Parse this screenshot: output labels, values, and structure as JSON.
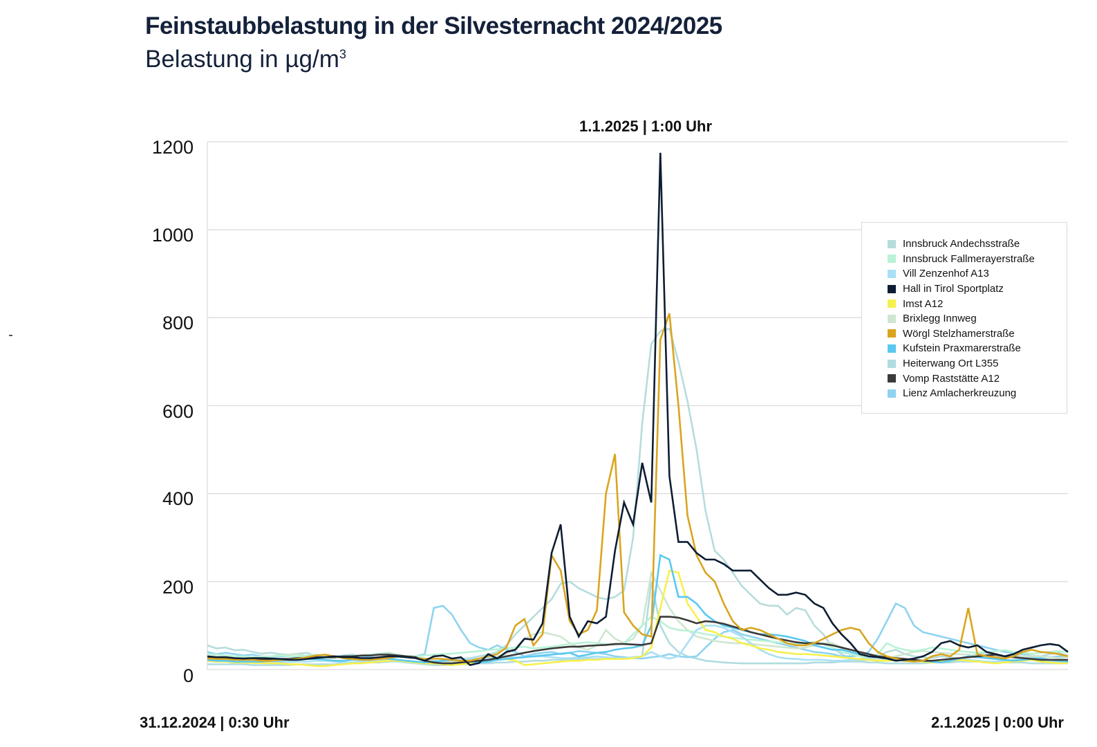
{
  "chart_data": {
    "type": "line",
    "title": "Feinstaubbelastung in der Silvesternacht 2024/2025",
    "subtitle": "Belastung in µg/m",
    "subtitle_sup": "3",
    "ylabel": "Belastung in µg/m³",
    "xlabel": "",
    "ylim": [
      0,
      1200
    ],
    "yticks": [
      "0",
      "200",
      "400",
      "600",
      "800",
      "1000",
      "1200"
    ],
    "grid": true,
    "legend_position": "right",
    "x_start_label": "31.12.2024 | 0:30 Uhr",
    "x_end_label": "2.1.2025 | 0:00 Uhr",
    "peak_annotation": "1.1.2025 | 1:00 Uhr",
    "x_interval": "30 min",
    "series": [
      {
        "name": "Innsbruck Andechsstraße",
        "color": "#b7dcdc",
        "values": [
          55,
          48,
          50,
          44,
          45,
          40,
          36,
          38,
          35,
          34,
          36,
          38,
          30,
          28,
          30,
          32,
          34,
          30,
          32,
          36,
          38,
          34,
          30,
          28,
          25,
          20,
          18,
          22,
          24,
          26,
          30,
          34,
          40,
          55,
          80,
          100,
          120,
          140,
          160,
          195,
          200,
          185,
          175,
          165,
          160,
          165,
          180,
          300,
          560,
          740,
          770,
          775,
          700,
          610,
          500,
          360,
          270,
          250,
          220,
          190,
          170,
          150,
          145,
          145,
          125,
          140,
          135,
          100,
          80,
          50,
          35,
          25,
          20,
          22,
          30,
          40,
          45,
          35,
          30,
          28,
          26,
          30,
          28,
          25,
          30,
          35,
          38,
          30,
          28,
          32,
          30,
          28,
          30,
          35,
          38,
          32
        ]
      },
      {
        "name": "Innsbruck Fallmerayerstraße",
        "color": "#b9f2d6",
        "values": [
          35,
          34,
          32,
          30,
          30,
          28,
          28,
          30,
          32,
          30,
          30,
          32,
          34,
          30,
          28,
          28,
          30,
          32,
          34,
          36,
          34,
          30,
          28,
          30,
          32,
          34,
          35,
          36,
          38,
          40,
          42,
          44,
          46,
          48,
          50,
          52,
          48,
          50,
          52,
          55,
          58,
          60,
          62,
          60,
          58,
          56,
          60,
          80,
          100,
          120,
          110,
          95,
          90,
          88,
          85,
          80,
          78,
          75,
          72,
          70,
          68,
          66,
          64,
          62,
          60,
          58,
          60,
          62,
          58,
          50,
          40,
          35,
          30,
          28,
          35,
          60,
          50,
          45,
          42,
          45,
          50,
          48,
          45,
          42,
          40,
          38,
          40,
          42,
          44,
          40,
          38,
          36,
          38,
          40,
          42,
          40
        ]
      },
      {
        "name": "Vill Zenzenhof A13",
        "color": "#a9e0f5",
        "values": [
          20,
          18,
          18,
          16,
          16,
          15,
          15,
          16,
          16,
          17,
          18,
          18,
          20,
          20,
          18,
          16,
          16,
          18,
          20,
          22,
          20,
          18,
          16,
          15,
          16,
          18,
          20,
          22,
          22,
          24,
          24,
          26,
          26,
          28,
          28,
          28,
          30,
          30,
          28,
          26,
          26,
          28,
          28,
          30,
          28,
          26,
          26,
          28,
          30,
          40,
          30,
          25,
          30,
          60,
          90,
          100,
          100,
          95,
          85,
          75,
          60,
          45,
          35,
          28,
          25,
          24,
          22,
          22,
          22,
          20,
          20,
          22,
          24,
          26,
          28,
          30,
          25,
          22,
          20,
          18,
          18,
          20,
          22,
          24,
          22,
          20,
          18,
          18,
          20,
          22,
          24,
          22,
          20,
          18,
          18,
          20
        ]
      },
      {
        "name": "Hall in Tirol Sportplatz",
        "color": "#0d1d33",
        "values": [
          30,
          28,
          28,
          26,
          25,
          26,
          26,
          25,
          24,
          22,
          22,
          24,
          26,
          28,
          30,
          28,
          28,
          26,
          26,
          28,
          30,
          30,
          28,
          26,
          20,
          30,
          32,
          25,
          28,
          10,
          15,
          35,
          25,
          40,
          45,
          70,
          68,
          105,
          265,
          330,
          120,
          75,
          110,
          105,
          120,
          270,
          380,
          330,
          470,
          380,
          1175,
          440,
          290,
          290,
          265,
          250,
          250,
          240,
          225,
          225,
          225,
          205,
          185,
          170,
          170,
          175,
          170,
          150,
          140,
          105,
          80,
          60,
          35,
          30,
          28,
          25,
          20,
          22,
          25,
          30,
          40,
          60,
          65,
          55,
          50,
          55,
          40,
          35,
          30,
          35,
          45,
          50,
          55,
          58,
          55,
          40
        ]
      },
      {
        "name": "Imst A12",
        "color": "#f6f04e",
        "values": [
          20,
          18,
          18,
          16,
          16,
          15,
          15,
          14,
          14,
          12,
          12,
          10,
          8,
          8,
          10,
          12,
          14,
          14,
          16,
          18,
          20,
          20,
          18,
          16,
          14,
          14,
          12,
          10,
          12,
          14,
          18,
          20,
          22,
          24,
          20,
          10,
          12,
          14,
          16,
          18,
          20,
          20,
          22,
          22,
          24,
          24,
          24,
          26,
          30,
          50,
          140,
          225,
          220,
          150,
          120,
          90,
          85,
          75,
          70,
          60,
          55,
          48,
          45,
          40,
          38,
          35,
          35,
          34,
          32,
          30,
          28,
          26,
          24,
          22,
          20,
          20,
          22,
          20,
          20,
          18,
          16,
          18,
          20,
          22,
          20,
          18,
          16,
          14,
          16,
          18,
          20,
          22,
          18,
          16,
          14,
          15
        ]
      },
      {
        "name": "Brixlegg Innweg",
        "color": "#cfe6d0",
        "values": [
          30,
          28,
          28,
          26,
          26,
          28,
          30,
          30,
          32,
          34,
          35,
          30,
          28,
          26,
          26,
          28,
          30,
          32,
          34,
          36,
          36,
          34,
          30,
          26,
          20,
          18,
          16,
          18,
          20,
          22,
          24,
          28,
          30,
          35,
          50,
          70,
          80,
          85,
          80,
          75,
          60,
          50,
          45,
          55,
          90,
          70,
          60,
          70,
          100,
          220,
          180,
          140,
          110,
          90,
          75,
          70,
          65,
          62,
          60,
          60,
          58,
          56,
          54,
          52,
          50,
          48,
          50,
          55,
          60,
          60,
          50,
          40,
          30,
          25,
          22,
          25,
          30,
          35,
          40,
          42,
          40,
          38,
          36,
          35,
          34,
          32,
          30,
          30,
          28,
          28,
          30,
          32,
          30,
          28,
          26,
          28
        ]
      },
      {
        "name": "Wörgl Stelzhamerstraße",
        "color": "#d9a51f",
        "values": [
          25,
          24,
          24,
          22,
          22,
          22,
          20,
          20,
          22,
          22,
          24,
          28,
          32,
          34,
          30,
          26,
          24,
          22,
          22,
          24,
          26,
          30,
          28,
          26,
          24,
          25,
          24,
          22,
          20,
          20,
          25,
          30,
          35,
          50,
          100,
          115,
          55,
          80,
          260,
          225,
          110,
          80,
          90,
          135,
          400,
          490,
          130,
          100,
          80,
          75,
          750,
          810,
          600,
          350,
          260,
          220,
          200,
          150,
          110,
          90,
          95,
          90,
          80,
          70,
          60,
          55,
          55,
          60,
          70,
          80,
          90,
          95,
          90,
          60,
          40,
          30,
          25,
          20,
          18,
          20,
          30,
          35,
          30,
          45,
          140,
          35,
          30,
          28,
          25,
          30,
          40,
          45,
          40,
          38,
          35,
          30
        ]
      },
      {
        "name": "Kufstein Praxmarerstraße",
        "color": "#5bc8ef",
        "values": [
          22,
          20,
          20,
          18,
          18,
          18,
          18,
          20,
          20,
          22,
          22,
          24,
          24,
          22,
          20,
          20,
          22,
          22,
          24,
          26,
          24,
          22,
          20,
          18,
          16,
          18,
          20,
          22,
          20,
          18,
          16,
          18,
          22,
          24,
          26,
          28,
          30,
          32,
          34,
          36,
          38,
          30,
          34,
          38,
          40,
          45,
          48,
          50,
          55,
          100,
          260,
          250,
          165,
          165,
          150,
          125,
          110,
          100,
          95,
          90,
          85,
          80,
          80,
          78,
          75,
          70,
          65,
          55,
          50,
          45,
          45,
          40,
          35,
          30,
          28,
          25,
          22,
          20,
          22,
          20,
          18,
          16,
          20,
          25,
          30,
          28,
          26,
          24,
          22,
          20,
          22,
          24,
          26,
          22,
          20,
          18
        ]
      },
      {
        "name": "Heiterwang Ort L355",
        "color": "#b0dce0",
        "values": [
          12,
          12,
          12,
          12,
          12,
          10,
          10,
          10,
          10,
          10,
          12,
          12,
          12,
          12,
          12,
          14,
          14,
          16,
          16,
          16,
          18,
          18,
          16,
          14,
          12,
          10,
          10,
          10,
          12,
          12,
          14,
          14,
          16,
          16,
          18,
          18,
          20,
          20,
          22,
          22,
          24,
          24,
          24,
          24,
          24,
          26,
          26,
          26,
          30,
          200,
          100,
          60,
          40,
          30,
          25,
          20,
          18,
          16,
          15,
          14,
          14,
          14,
          14,
          14,
          14,
          14,
          14,
          16,
          16,
          16,
          18,
          18,
          18,
          16,
          16,
          14,
          14,
          14,
          14,
          14,
          16,
          16,
          16,
          18,
          18,
          18,
          18,
          16,
          16,
          16,
          16,
          14,
          14,
          14,
          14,
          14
        ]
      },
      {
        "name": "Vomp Raststätte A12",
        "color": "#3a3a3a",
        "values": [
          26,
          26,
          25,
          24,
          24,
          24,
          22,
          22,
          24,
          24,
          26,
          26,
          28,
          28,
          28,
          30,
          30,
          32,
          32,
          34,
          34,
          32,
          30,
          28,
          20,
          16,
          14,
          14,
          16,
          18,
          20,
          22,
          26,
          30,
          34,
          38,
          42,
          45,
          48,
          50,
          52,
          52,
          54,
          55,
          56,
          58,
          58,
          57,
          56,
          60,
          120,
          120,
          118,
          112,
          105,
          110,
          108,
          104,
          98,
          92,
          85,
          80,
          75,
          70,
          66,
          62,
          60,
          60,
          58,
          55,
          50,
          45,
          40,
          35,
          30,
          28,
          26,
          24,
          22,
          20,
          20,
          22,
          24,
          26,
          28,
          30,
          32,
          34,
          30,
          28,
          26,
          24,
          22,
          22,
          22,
          22
        ]
      },
      {
        "name": "Lienz Amlacherkreuzung",
        "color": "#8fd3f0",
        "values": [
          40,
          35,
          38,
          35,
          32,
          34,
          30,
          28,
          30,
          30,
          28,
          26,
          26,
          28,
          30,
          30,
          32,
          30,
          28,
          26,
          26,
          28,
          30,
          30,
          35,
          140,
          145,
          125,
          90,
          60,
          50,
          45,
          55,
          45,
          40,
          30,
          35,
          38,
          40,
          35,
          38,
          42,
          40,
          38,
          35,
          30,
          28,
          26,
          25,
          28,
          30,
          35,
          30,
          28,
          30,
          50,
          70,
          85,
          90,
          80,
          75,
          70,
          65,
          60,
          55,
          50,
          45,
          40,
          38,
          35,
          30,
          30,
          32,
          40,
          70,
          110,
          150,
          140,
          100,
          85,
          80,
          75,
          70,
          65,
          60,
          55,
          50,
          45,
          40,
          38,
          35,
          32,
          30,
          28,
          30,
          30
        ]
      }
    ]
  }
}
